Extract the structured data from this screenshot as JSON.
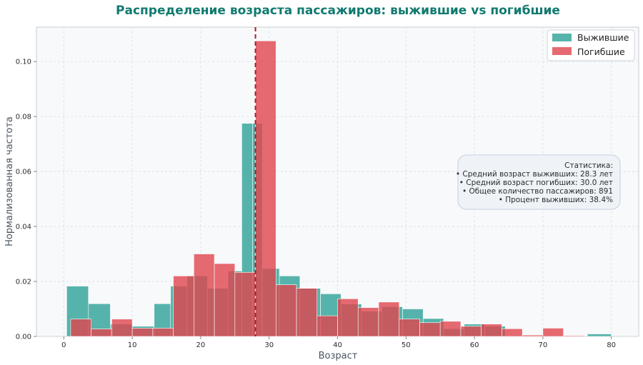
{
  "colors": {
    "survived": "#3aa79c",
    "died": "#e0454d",
    "mean_line": "#b01c23",
    "plot_bg": "#f7f9fb",
    "title": "#117a6f"
  },
  "chart_data": {
    "type": "histogram",
    "title": "Распределение возраста пассажиров: выжившие vs погибшие",
    "xlabel": "Возраст",
    "ylabel": "Нормализованная частота",
    "xlim": [
      -4,
      84
    ],
    "ylim": [
      0,
      0.1125
    ],
    "xticks": [
      0,
      10,
      20,
      30,
      40,
      50,
      60,
      70,
      80
    ],
    "yticks": [
      0.0,
      0.02,
      0.04,
      0.06,
      0.08,
      0.1
    ],
    "ytick_labels": [
      "0.00",
      "0.02",
      "0.04",
      "0.06",
      "0.08",
      "0.10"
    ],
    "grid": true,
    "legend_position": "top-right",
    "series": [
      {
        "name": "Выжившие",
        "bins": [
          [
            0.42,
            3.6,
            0.0183
          ],
          [
            3.6,
            6.8,
            0.0119
          ],
          [
            6.8,
            10.0,
            0.0045
          ],
          [
            10.0,
            13.2,
            0.0037
          ],
          [
            13.2,
            15.6,
            0.0119
          ],
          [
            15.6,
            18.0,
            0.0183
          ],
          [
            18.0,
            21.0,
            0.022
          ],
          [
            21.0,
            24.0,
            0.0175
          ],
          [
            24.0,
            26.0,
            0.0238
          ],
          [
            26.0,
            27.6,
            0.0775
          ],
          [
            27.6,
            29.0,
            0.0775
          ],
          [
            29.0,
            31.5,
            0.0247
          ],
          [
            31.5,
            34.5,
            0.022
          ],
          [
            34.5,
            37.5,
            0.0175
          ],
          [
            37.5,
            40.5,
            0.0155
          ],
          [
            40.5,
            43.5,
            0.0118
          ],
          [
            43.5,
            46.5,
            0.0092
          ],
          [
            46.5,
            49.5,
            0.0108
          ],
          [
            49.5,
            52.5,
            0.01
          ],
          [
            52.5,
            55.5,
            0.0065
          ],
          [
            55.5,
            58.5,
            0.0028
          ],
          [
            58.5,
            61.5,
            0.0045
          ],
          [
            61.5,
            64.5,
            0.0037
          ],
          [
            76.5,
            80.0,
            0.0009
          ]
        ]
      },
      {
        "name": "Погибшие",
        "bins": [
          [
            1.0,
            4.0,
            0.0063
          ],
          [
            4.0,
            7.0,
            0.0027
          ],
          [
            7.0,
            10.0,
            0.0063
          ],
          [
            10.0,
            13.0,
            0.003
          ],
          [
            13.0,
            16.0,
            0.003
          ],
          [
            16.0,
            19.0,
            0.022
          ],
          [
            19.0,
            22.0,
            0.03
          ],
          [
            22.0,
            25.0,
            0.0265
          ],
          [
            25.0,
            28.0,
            0.0233
          ],
          [
            28.0,
            31.0,
            0.1075
          ],
          [
            31.0,
            34.0,
            0.0188
          ],
          [
            34.0,
            37.0,
            0.0175
          ],
          [
            37.0,
            40.0,
            0.0075
          ],
          [
            40.0,
            43.0,
            0.0137
          ],
          [
            43.0,
            46.0,
            0.0105
          ],
          [
            46.0,
            49.0,
            0.0125
          ],
          [
            49.0,
            52.0,
            0.0063
          ],
          [
            52.0,
            55.0,
            0.005
          ],
          [
            55.0,
            58.0,
            0.0055
          ],
          [
            58.0,
            61.0,
            0.0037
          ],
          [
            61.0,
            64.0,
            0.0045
          ],
          [
            64.0,
            67.0,
            0.0028
          ],
          [
            67.0,
            70.0,
            0.0005
          ],
          [
            70.0,
            73.0,
            0.003
          ],
          [
            73.0,
            76.0,
            0.0003
          ]
        ]
      }
    ],
    "mean_line_x": 28.0,
    "stats": {
      "title": "Статистика:",
      "lines": [
        "• Средний возраст выживших: 28.3 лет",
        "• Средний возраст погибших: 30.0 лет",
        "• Общее количество пассажиров: 891",
        "• Процент выживших: 38.4%"
      ]
    }
  }
}
